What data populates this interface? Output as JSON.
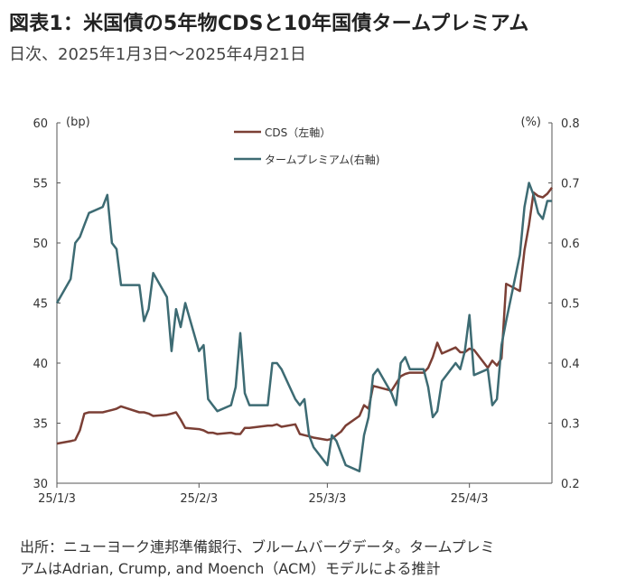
{
  "title": "図表1：米国債の5年物CDSと10年国債タームプレミアム",
  "subtitle": "日次、2025年1月3日～2025年4月21日",
  "source_line1": "出所：ニューヨーク連邦準備銀行、ブルームバーグデータ。タームプレミ",
  "source_line2": "アムはAdrian, Crump, and Moench（ACM）モデルによる推計",
  "chart_data": {
    "type": "line",
    "left_unit": "(bp)",
    "right_unit": "(%)",
    "left_ylim": [
      30,
      60
    ],
    "right_ylim": [
      0.2,
      0.8
    ],
    "left_ticks": [
      "30",
      "35",
      "40",
      "45",
      "50",
      "55",
      "60"
    ],
    "right_ticks": [
      "0.2",
      "0.3",
      "0.4",
      "0.5",
      "0.6",
      "0.7",
      "0.8"
    ],
    "x_range": [
      "2025-01-03",
      "2025-04-21"
    ],
    "x_ticks": [
      {
        "date": "2025-01-03",
        "label": "25/1/3"
      },
      {
        "date": "2025-02-03",
        "label": "25/2/3"
      },
      {
        "date": "2025-03-03",
        "label": "25/3/3"
      },
      {
        "date": "2025-04-03",
        "label": "25/4/3"
      }
    ],
    "grid": false,
    "legend_position": "top-center",
    "series": [
      {
        "name": "CDS（左軸）",
        "axis": "left",
        "color": "#7b3f35",
        "points": [
          [
            "2025-01-03",
            33.3
          ],
          [
            "2025-01-06",
            33.5
          ],
          [
            "2025-01-07",
            33.6
          ],
          [
            "2025-01-08",
            34.4
          ],
          [
            "2025-01-09",
            35.8
          ],
          [
            "2025-01-10",
            35.9
          ],
          [
            "2025-01-13",
            35.9
          ],
          [
            "2025-01-14",
            36.0
          ],
          [
            "2025-01-15",
            36.1
          ],
          [
            "2025-01-16",
            36.2
          ],
          [
            "2025-01-17",
            36.4
          ],
          [
            "2025-01-21",
            35.9
          ],
          [
            "2025-01-22",
            35.9
          ],
          [
            "2025-01-23",
            35.8
          ],
          [
            "2025-01-24",
            35.6
          ],
          [
            "2025-01-27",
            35.7
          ],
          [
            "2025-01-28",
            35.8
          ],
          [
            "2025-01-29",
            35.9
          ],
          [
            "2025-01-30",
            35.3
          ],
          [
            "2025-01-31",
            34.6
          ],
          [
            "2025-02-03",
            34.5
          ],
          [
            "2025-02-04",
            34.4
          ],
          [
            "2025-02-05",
            34.2
          ],
          [
            "2025-02-06",
            34.2
          ],
          [
            "2025-02-07",
            34.1
          ],
          [
            "2025-02-10",
            34.2
          ],
          [
            "2025-02-11",
            34.1
          ],
          [
            "2025-02-12",
            34.1
          ],
          [
            "2025-02-13",
            34.6
          ],
          [
            "2025-02-14",
            34.6
          ],
          [
            "2025-02-18",
            34.8
          ],
          [
            "2025-02-19",
            34.8
          ],
          [
            "2025-02-20",
            34.9
          ],
          [
            "2025-02-21",
            34.7
          ],
          [
            "2025-02-24",
            34.9
          ],
          [
            "2025-02-25",
            34.1
          ],
          [
            "2025-02-26",
            34.0
          ],
          [
            "2025-02-27",
            33.9
          ],
          [
            "2025-02-28",
            33.8
          ],
          [
            "2025-03-03",
            33.6
          ],
          [
            "2025-03-04",
            33.7
          ],
          [
            "2025-03-05",
            34.0
          ],
          [
            "2025-03-06",
            34.3
          ],
          [
            "2025-03-07",
            34.8
          ],
          [
            "2025-03-10",
            35.6
          ],
          [
            "2025-03-11",
            36.5
          ],
          [
            "2025-03-12",
            36.2
          ],
          [
            "2025-03-13",
            38.1
          ],
          [
            "2025-03-14",
            38.0
          ],
          [
            "2025-03-17",
            37.7
          ],
          [
            "2025-03-18",
            38.3
          ],
          [
            "2025-03-19",
            38.9
          ],
          [
            "2025-03-20",
            39.1
          ],
          [
            "2025-03-21",
            39.2
          ],
          [
            "2025-03-24",
            39.2
          ],
          [
            "2025-03-25",
            39.6
          ],
          [
            "2025-03-26",
            40.5
          ],
          [
            "2025-03-27",
            41.7
          ],
          [
            "2025-03-28",
            40.8
          ],
          [
            "2025-03-31",
            41.3
          ],
          [
            "2025-04-01",
            40.9
          ],
          [
            "2025-04-02",
            40.9
          ],
          [
            "2025-04-03",
            41.2
          ],
          [
            "2025-04-04",
            41.1
          ],
          [
            "2025-04-07",
            39.6
          ],
          [
            "2025-04-08",
            40.2
          ],
          [
            "2025-04-09",
            39.8
          ],
          [
            "2025-04-10",
            40.4
          ],
          [
            "2025-04-11",
            46.6
          ],
          [
            "2025-04-14",
            46.0
          ],
          [
            "2025-04-15",
            49.4
          ],
          [
            "2025-04-16",
            51.5
          ],
          [
            "2025-04-17",
            54.2
          ],
          [
            "2025-04-18",
            53.9
          ],
          [
            "2025-04-19",
            53.8
          ],
          [
            "2025-04-20",
            54.1
          ],
          [
            "2025-04-21",
            54.6
          ]
        ]
      },
      {
        "name": "タームプレミアム(右軸)",
        "axis": "right",
        "color": "#3d6b73",
        "points": [
          [
            "2025-01-03",
            0.5
          ],
          [
            "2025-01-06",
            0.54
          ],
          [
            "2025-01-07",
            0.6
          ],
          [
            "2025-01-08",
            0.61
          ],
          [
            "2025-01-09",
            0.63
          ],
          [
            "2025-01-10",
            0.65
          ],
          [
            "2025-01-13",
            0.66
          ],
          [
            "2025-01-14",
            0.68
          ],
          [
            "2025-01-15",
            0.6
          ],
          [
            "2025-01-16",
            0.59
          ],
          [
            "2025-01-17",
            0.53
          ],
          [
            "2025-01-21",
            0.53
          ],
          [
            "2025-01-22",
            0.47
          ],
          [
            "2025-01-23",
            0.49
          ],
          [
            "2025-01-24",
            0.55
          ],
          [
            "2025-01-27",
            0.51
          ],
          [
            "2025-01-28",
            0.42
          ],
          [
            "2025-01-29",
            0.49
          ],
          [
            "2025-01-30",
            0.46
          ],
          [
            "2025-01-31",
            0.5
          ],
          [
            "2025-02-03",
            0.42
          ],
          [
            "2025-02-04",
            0.43
          ],
          [
            "2025-02-05",
            0.34
          ],
          [
            "2025-02-06",
            0.33
          ],
          [
            "2025-02-07",
            0.32
          ],
          [
            "2025-02-10",
            0.33
          ],
          [
            "2025-02-11",
            0.36
          ],
          [
            "2025-02-12",
            0.45
          ],
          [
            "2025-02-13",
            0.35
          ],
          [
            "2025-02-14",
            0.33
          ],
          [
            "2025-02-18",
            0.33
          ],
          [
            "2025-02-19",
            0.4
          ],
          [
            "2025-02-20",
            0.4
          ],
          [
            "2025-02-21",
            0.39
          ],
          [
            "2025-02-24",
            0.34
          ],
          [
            "2025-02-25",
            0.33
          ],
          [
            "2025-02-26",
            0.34
          ],
          [
            "2025-02-27",
            0.28
          ],
          [
            "2025-02-28",
            0.26
          ],
          [
            "2025-03-03",
            0.23
          ],
          [
            "2025-03-04",
            0.28
          ],
          [
            "2025-03-05",
            0.27
          ],
          [
            "2025-03-06",
            0.25
          ],
          [
            "2025-03-07",
            0.23
          ],
          [
            "2025-03-10",
            0.22
          ],
          [
            "2025-03-11",
            0.28
          ],
          [
            "2025-03-12",
            0.31
          ],
          [
            "2025-03-13",
            0.38
          ],
          [
            "2025-03-14",
            0.39
          ],
          [
            "2025-03-17",
            0.35
          ],
          [
            "2025-03-18",
            0.33
          ],
          [
            "2025-03-19",
            0.4
          ],
          [
            "2025-03-20",
            0.41
          ],
          [
            "2025-03-21",
            0.39
          ],
          [
            "2025-03-24",
            0.39
          ],
          [
            "2025-03-25",
            0.36
          ],
          [
            "2025-03-26",
            0.31
          ],
          [
            "2025-03-27",
            0.32
          ],
          [
            "2025-03-28",
            0.37
          ],
          [
            "2025-03-31",
            0.4
          ],
          [
            "2025-04-01",
            0.39
          ],
          [
            "2025-04-02",
            0.42
          ],
          [
            "2025-04-03",
            0.48
          ],
          [
            "2025-04-04",
            0.38
          ],
          [
            "2025-04-07",
            0.39
          ],
          [
            "2025-04-08",
            0.33
          ],
          [
            "2025-04-09",
            0.34
          ],
          [
            "2025-04-10",
            0.43
          ],
          [
            "2025-04-11",
            0.47
          ],
          [
            "2025-04-14",
            0.58
          ],
          [
            "2025-04-15",
            0.66
          ],
          [
            "2025-04-16",
            0.7
          ],
          [
            "2025-04-17",
            0.68
          ],
          [
            "2025-04-18",
            0.65
          ],
          [
            "2025-04-19",
            0.64
          ],
          [
            "2025-04-20",
            0.67
          ],
          [
            "2025-04-21",
            0.67
          ]
        ]
      }
    ]
  }
}
